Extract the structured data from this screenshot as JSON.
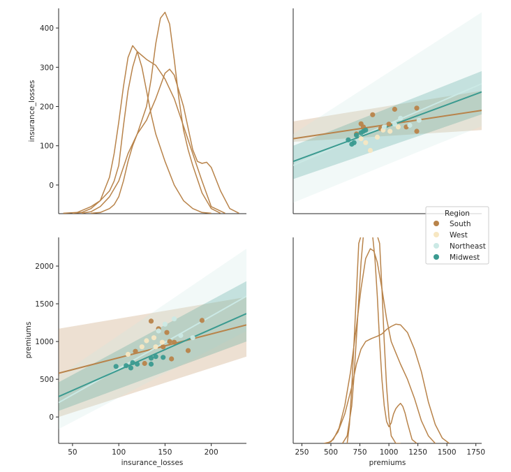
{
  "colors": {
    "South": "#b8834a",
    "West": "#f7e7c2",
    "Northeast": "#cbe9e5",
    "Midwest": "#3a9a90",
    "axis": "#262626"
  },
  "legend": {
    "title": "Region",
    "entries": [
      "South",
      "West",
      "Northeast",
      "Midwest"
    ]
  },
  "chart_data": [
    {
      "panel": "top-left",
      "type": "line",
      "subtype": "kde",
      "ylabel": "insurance_losses",
      "xlim": [
        35,
        238
      ],
      "ylim": [
        -73,
        450
      ],
      "yticks": [
        0,
        100,
        200,
        300,
        400
      ],
      "series": [
        {
          "name": "curve-a",
          "color": "#b8834a",
          "x": [
            40,
            55,
            70,
            80,
            90,
            95,
            100,
            105,
            110,
            115,
            120,
            125,
            130,
            140,
            150,
            160,
            170,
            180,
            190,
            200,
            215
          ],
          "y": [
            -72,
            -70,
            -55,
            -40,
            -15,
            10,
            50,
            150,
            240,
            300,
            340,
            330,
            320,
            305,
            270,
            220,
            150,
            80,
            10,
            -55,
            -72
          ]
        },
        {
          "name": "curve-b",
          "color": "#b8834a",
          "x": [
            50,
            60,
            70,
            80,
            90,
            95,
            100,
            105,
            110,
            115,
            120,
            125,
            130,
            135,
            140,
            150,
            160,
            170,
            180,
            190,
            200
          ],
          "y": [
            -72,
            -70,
            -60,
            -40,
            20,
            80,
            160,
            250,
            325,
            355,
            340,
            300,
            240,
            180,
            130,
            60,
            0,
            -40,
            -60,
            -70,
            -72
          ]
        },
        {
          "name": "curve-c",
          "color": "#b8834a",
          "x": [
            60,
            70,
            80,
            90,
            100,
            110,
            120,
            130,
            135,
            140,
            145,
            150,
            155,
            160,
            165,
            170,
            175,
            180,
            190,
            200,
            210
          ],
          "y": [
            -72,
            -68,
            -55,
            -30,
            10,
            80,
            130,
            200,
            270,
            360,
            425,
            440,
            410,
            320,
            220,
            140,
            90,
            50,
            -20,
            -60,
            -72
          ]
        },
        {
          "name": "curve-d",
          "color": "#b8834a",
          "x": [
            70,
            80,
            90,
            95,
            100,
            105,
            110,
            115,
            120,
            130,
            140,
            150,
            155,
            160,
            170,
            180,
            185,
            190,
            195,
            200,
            210,
            220,
            230
          ],
          "y": [
            -72,
            -70,
            -60,
            -50,
            -30,
            10,
            60,
            100,
            130,
            165,
            220,
            285,
            295,
            280,
            200,
            90,
            60,
            55,
            58,
            45,
            -15,
            -60,
            -72
          ]
        }
      ],
      "xticks_hidden": true
    },
    {
      "panel": "top-right",
      "type": "scatter",
      "with_regression": true,
      "xlim": [
        175,
        1800
      ],
      "ylim": [
        -73,
        450
      ],
      "points": [
        {
          "region": "South",
          "x": 780,
          "y": 148
        },
        {
          "region": "South",
          "x": 760,
          "y": 156
        },
        {
          "region": "South",
          "x": 860,
          "y": 179
        },
        {
          "region": "South",
          "x": 1050,
          "y": 193
        },
        {
          "region": "South",
          "x": 1240,
          "y": 196
        },
        {
          "region": "South",
          "x": 1240,
          "y": 137
        },
        {
          "region": "South",
          "x": 930,
          "y": 144
        },
        {
          "region": "South",
          "x": 1000,
          "y": 155
        },
        {
          "region": "South",
          "x": 720,
          "y": 130
        },
        {
          "region": "South",
          "x": 1150,
          "y": 148
        },
        {
          "region": "West",
          "x": 800,
          "y": 108
        },
        {
          "region": "West",
          "x": 900,
          "y": 122
        },
        {
          "region": "West",
          "x": 840,
          "y": 88
        },
        {
          "region": "West",
          "x": 950,
          "y": 140
        },
        {
          "region": "West",
          "x": 760,
          "y": 118
        },
        {
          "region": "West",
          "x": 1010,
          "y": 137
        },
        {
          "region": "West",
          "x": 1080,
          "y": 148
        },
        {
          "region": "Northeast",
          "x": 1100,
          "y": 170
        },
        {
          "region": "Northeast",
          "x": 1180,
          "y": 152
        },
        {
          "region": "Northeast",
          "x": 960,
          "y": 148
        },
        {
          "region": "Northeast",
          "x": 1050,
          "y": 155
        },
        {
          "region": "Northeast",
          "x": 1260,
          "y": 165
        },
        {
          "region": "Midwest",
          "x": 650,
          "y": 115
        },
        {
          "region": "Midwest",
          "x": 700,
          "y": 108
        },
        {
          "region": "Midwest",
          "x": 720,
          "y": 127
        },
        {
          "region": "Midwest",
          "x": 780,
          "y": 137
        },
        {
          "region": "Midwest",
          "x": 800,
          "y": 140
        },
        {
          "region": "Midwest",
          "x": 760,
          "y": 133
        },
        {
          "region": "Midwest",
          "x": 680,
          "y": 104
        }
      ],
      "regressions": [
        {
          "region": "South",
          "x0": 175,
          "x1": 1800,
          "y0": 118,
          "y1": 190,
          "band_lo0": 110,
          "band_hi0": 162,
          "band_lo1": 140,
          "band_hi1": 240
        },
        {
          "region": "Northeast",
          "x0": 175,
          "x1": 1800,
          "y0": 50,
          "y1": 258,
          "band_lo0": -45,
          "band_hi0": 130,
          "band_lo1": 150,
          "band_hi1": 440
        },
        {
          "region": "Midwest",
          "x0": 175,
          "x1": 1800,
          "y0": 60,
          "y1": 237,
          "band_lo0": 15,
          "band_hi0": 100,
          "band_lo1": 180,
          "band_hi1": 290
        }
      ]
    },
    {
      "panel": "bottom-left",
      "type": "scatter",
      "with_regression": true,
      "xlabel": "insurance_losses",
      "ylabel": "premiums",
      "xlim": [
        35,
        238
      ],
      "ylim": [
        -350,
        2380
      ],
      "xticks": [
        50,
        100,
        150,
        200
      ],
      "yticks": [
        0,
        500,
        1000,
        1500,
        2000
      ],
      "points": [
        {
          "region": "South",
          "x": 135,
          "y": 1270
        },
        {
          "region": "South",
          "x": 143,
          "y": 1170
        },
        {
          "region": "South",
          "x": 155,
          "y": 1000
        },
        {
          "region": "South",
          "x": 157,
          "y": 770
        },
        {
          "region": "South",
          "x": 175,
          "y": 880
        },
        {
          "region": "South",
          "x": 190,
          "y": 1280
        },
        {
          "region": "South",
          "x": 128,
          "y": 710
        },
        {
          "region": "South",
          "x": 148,
          "y": 930
        },
        {
          "region": "South",
          "x": 160,
          "y": 990
        },
        {
          "region": "South",
          "x": 118,
          "y": 870
        },
        {
          "region": "South",
          "x": 152,
          "y": 1120
        },
        {
          "region": "West",
          "x": 110,
          "y": 830
        },
        {
          "region": "West",
          "x": 125,
          "y": 930
        },
        {
          "region": "West",
          "x": 138,
          "y": 1050
        },
        {
          "region": "West",
          "x": 140,
          "y": 930
        },
        {
          "region": "West",
          "x": 147,
          "y": 990
        },
        {
          "region": "West",
          "x": 130,
          "y": 1010
        },
        {
          "region": "Northeast",
          "x": 150,
          "y": 1230
        },
        {
          "region": "Northeast",
          "x": 160,
          "y": 1300
        },
        {
          "region": "Northeast",
          "x": 167,
          "y": 1080
        },
        {
          "region": "Northeast",
          "x": 143,
          "y": 1140
        },
        {
          "region": "Northeast",
          "x": 180,
          "y": 1050
        },
        {
          "region": "Midwest",
          "x": 97,
          "y": 670
        },
        {
          "region": "Midwest",
          "x": 108,
          "y": 680
        },
        {
          "region": "Midwest",
          "x": 115,
          "y": 720
        },
        {
          "region": "Midwest",
          "x": 120,
          "y": 700
        },
        {
          "region": "Midwest",
          "x": 135,
          "y": 780
        },
        {
          "region": "Midwest",
          "x": 140,
          "y": 800
        },
        {
          "region": "Midwest",
          "x": 148,
          "y": 790
        },
        {
          "region": "Midwest",
          "x": 113,
          "y": 650
        },
        {
          "region": "Midwest",
          "x": 135,
          "y": 700
        }
      ],
      "regressions": [
        {
          "region": "South",
          "x0": 35,
          "x1": 238,
          "y0": 580,
          "y1": 1220,
          "band_lo0": 0,
          "band_hi0": 1170,
          "band_lo1": 800,
          "band_hi1": 1590
        },
        {
          "region": "Northeast",
          "x0": 35,
          "x1": 238,
          "y0": 190,
          "y1": 1600,
          "band_lo0": -160,
          "band_hi0": 540,
          "band_lo1": 1140,
          "band_hi1": 2230
        },
        {
          "region": "Midwest",
          "x0": 35,
          "x1": 238,
          "y0": 270,
          "y1": 1370,
          "band_lo0": 80,
          "band_hi0": 460,
          "band_lo1": 1000,
          "band_hi1": 1800
        }
      ]
    },
    {
      "panel": "bottom-right",
      "type": "line",
      "subtype": "kde",
      "xlabel": "premiums",
      "xlim": [
        175,
        1800
      ],
      "ylim": [
        -350,
        2380
      ],
      "xticks": [
        250,
        500,
        750,
        1000,
        1250,
        1500,
        1750
      ],
      "series": [
        {
          "name": "curve-a",
          "color": "#b8834a",
          "x": [
            440,
            500,
            560,
            620,
            680,
            720,
            760,
            800,
            850,
            900,
            940,
            980,
            1020,
            1060,
            1100,
            1160,
            1220,
            1280,
            1340,
            1400,
            1460,
            1520
          ],
          "y": [
            -350,
            -330,
            -200,
            40,
            400,
            700,
            900,
            1000,
            1040,
            1070,
            1100,
            1160,
            1200,
            1230,
            1220,
            1120,
            900,
            600,
            200,
            -100,
            -280,
            -350
          ]
        },
        {
          "name": "curve-b",
          "color": "#b8834a",
          "x": [
            470,
            520,
            570,
            620,
            670,
            720,
            760,
            800,
            840,
            870,
            900,
            940,
            980,
            1020,
            1060,
            1100,
            1160,
            1220,
            1280,
            1340,
            1400
          ],
          "y": [
            -350,
            -300,
            -150,
            150,
            600,
            1200,
            1700,
            2100,
            2230,
            2200,
            2050,
            1700,
            1300,
            1000,
            850,
            700,
            500,
            250,
            -50,
            -250,
            -350
          ]
        },
        {
          "name": "curve-c",
          "color": "#b8834a",
          "x": [
            600,
            640,
            680,
            700,
            720,
            740,
            760,
            780,
            800,
            820,
            840,
            860,
            880,
            900,
            920,
            940,
            960,
            980,
            1000,
            1020,
            1040,
            1060,
            1080,
            1100,
            1120,
            1140,
            1160,
            1200,
            1240
          ],
          "y": [
            -350,
            -250,
            150,
            550,
            1050,
            1550,
            2050,
            2400,
            2400,
            2400,
            2400,
            2400,
            2100,
            1600,
            1000,
            500,
            150,
            -60,
            -130,
            -80,
            40,
            110,
            150,
            180,
            140,
            50,
            -80,
            -300,
            -350
          ]
        },
        {
          "name": "curve-d",
          "color": "#b8834a",
          "x": [
            640,
            660,
            680,
            700,
            720,
            740,
            760,
            780,
            800,
            820,
            840,
            860,
            880,
            900,
            920,
            940,
            960,
            980,
            1000,
            1020,
            1060,
            1100
          ],
          "y": [
            -350,
            -100,
            400,
            1000,
            1650,
            2300,
            2400,
            2400,
            2400,
            2400,
            2400,
            2400,
            2400,
            2400,
            2300,
            1700,
            1000,
            400,
            0,
            -250,
            -350,
            -350
          ]
        }
      ]
    }
  ]
}
